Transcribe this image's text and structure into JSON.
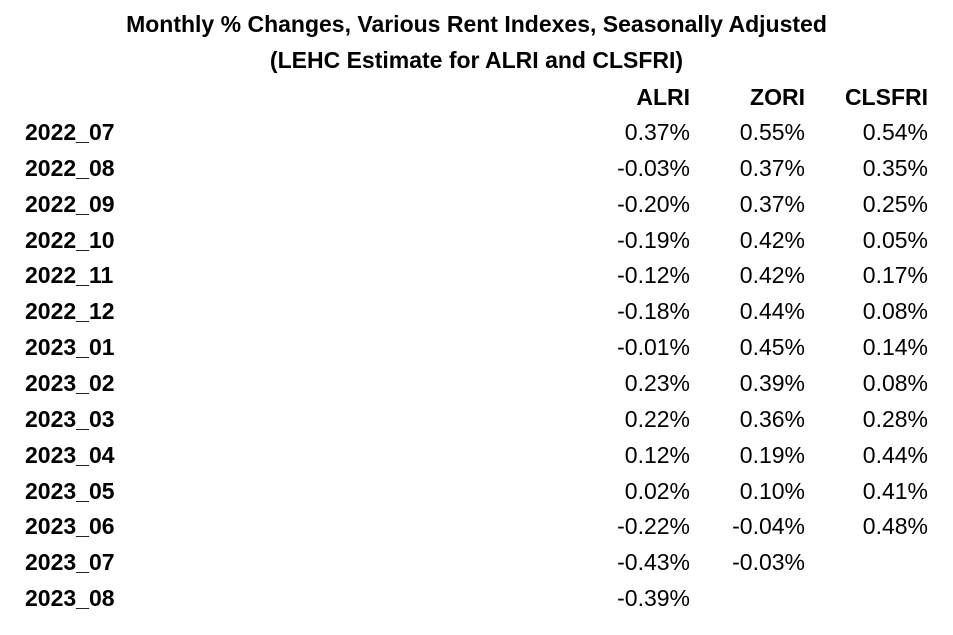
{
  "chart_data": {
    "type": "table",
    "title": "Monthly % Changes, Various Rent Indexes, Seasonally Adjusted",
    "subtitle": "(LEHC Estimate for ALRI and CLSFRI)",
    "columns": [
      "ALRI",
      "ZORI",
      "CLSFRI"
    ],
    "rows": [
      {
        "label": "2022_07",
        "values": [
          "0.37%",
          "0.55%",
          "0.54%"
        ]
      },
      {
        "label": "2022_08",
        "values": [
          "-0.03%",
          "0.37%",
          "0.35%"
        ]
      },
      {
        "label": "2022_09",
        "values": [
          "-0.20%",
          "0.37%",
          "0.25%"
        ]
      },
      {
        "label": "2022_10",
        "values": [
          "-0.19%",
          "0.42%",
          "0.05%"
        ]
      },
      {
        "label": "2022_11",
        "values": [
          "-0.12%",
          "0.42%",
          "0.17%"
        ]
      },
      {
        "label": "2022_12",
        "values": [
          "-0.18%",
          "0.44%",
          "0.08%"
        ]
      },
      {
        "label": "2023_01",
        "values": [
          "-0.01%",
          "0.45%",
          "0.14%"
        ]
      },
      {
        "label": "2023_02",
        "values": [
          "0.23%",
          "0.39%",
          "0.08%"
        ]
      },
      {
        "label": "2023_03",
        "values": [
          "0.22%",
          "0.36%",
          "0.28%"
        ]
      },
      {
        "label": "2023_04",
        "values": [
          "0.12%",
          "0.19%",
          "0.44%"
        ]
      },
      {
        "label": "2023_05",
        "values": [
          "0.02%",
          "0.10%",
          "0.41%"
        ]
      },
      {
        "label": "2023_06",
        "values": [
          "-0.22%",
          "-0.04%",
          "0.48%"
        ]
      },
      {
        "label": "2023_07",
        "values": [
          "-0.43%",
          "-0.03%",
          ""
        ]
      },
      {
        "label": "2023_08",
        "values": [
          "-0.39%",
          "",
          ""
        ]
      }
    ]
  }
}
